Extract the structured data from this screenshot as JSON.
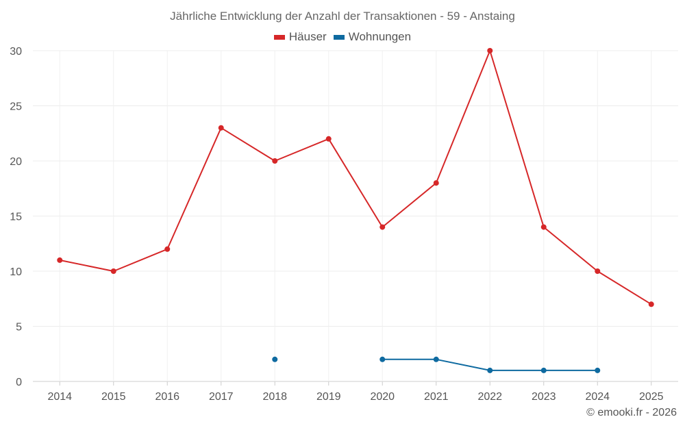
{
  "title": "Jährliche Entwicklung der Anzahl der Transaktionen - 59 - Anstaing",
  "footer": "© emooki.fr - 2026",
  "chart_data": {
    "type": "line",
    "title": "Jährliche Entwicklung der Anzahl der Transaktionen - 59 - Anstaing",
    "xlabel": "",
    "ylabel": "",
    "categories": [
      "2014",
      "2015",
      "2016",
      "2017",
      "2018",
      "2019",
      "2020",
      "2021",
      "2022",
      "2023",
      "2024",
      "2025"
    ],
    "ylim": [
      0,
      30
    ],
    "yticks": [
      0,
      5,
      10,
      15,
      20,
      25,
      30
    ],
    "grid": true,
    "legend_position": "top-center",
    "series": [
      {
        "name": "Häuser",
        "color": "#d62728",
        "values": [
          11,
          10,
          12,
          23,
          20,
          22,
          14,
          18,
          30,
          14,
          10,
          7
        ]
      },
      {
        "name": "Wohnungen",
        "color": "#0e6aa0",
        "values": [
          null,
          null,
          null,
          null,
          2,
          null,
          2,
          2,
          1,
          1,
          1,
          null
        ]
      }
    ]
  }
}
